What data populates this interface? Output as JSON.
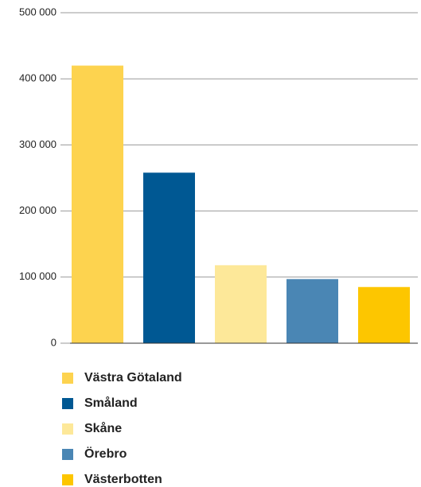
{
  "chart_data": {
    "type": "bar",
    "categories": [
      "Västra Götaland",
      "Småland",
      "Skåne",
      "Örebro",
      "Västerbotten"
    ],
    "values": [
      420000,
      258000,
      118000,
      97000,
      85000
    ],
    "colors": [
      "#fdd34f",
      "#005893",
      "#fde899",
      "#4a86b4",
      "#fdc600"
    ],
    "ylim": [
      0,
      500000
    ],
    "yticks": [
      {
        "value": 0,
        "label": "0"
      },
      {
        "value": 100000,
        "label": "100 000"
      },
      {
        "value": 200000,
        "label": "200 000"
      },
      {
        "value": 300000,
        "label": "300 000"
      },
      {
        "value": 400000,
        "label": "400 000"
      },
      {
        "value": 500000,
        "label": "500 000"
      }
    ],
    "grid": true
  }
}
